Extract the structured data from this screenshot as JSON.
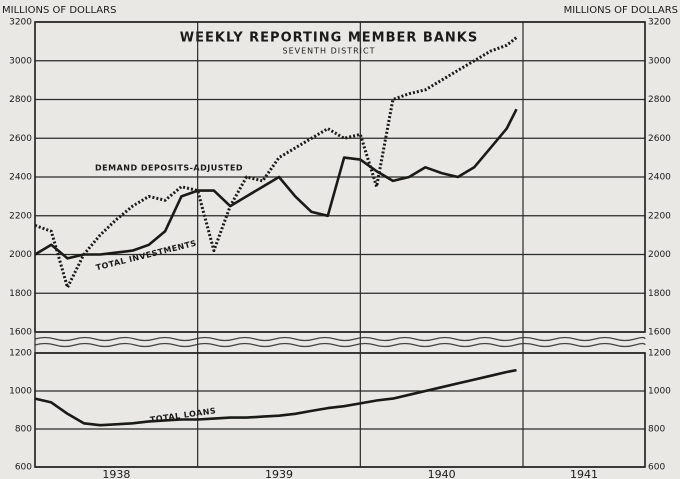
{
  "chart_data": [
    {
      "type": "line",
      "title": "WEEKLY REPORTING MEMBER BANKS",
      "subtitle": "SEVENTH DISTRICT",
      "ylabel": "MILLIONS OF DOLLARS",
      "ylim": [
        1600,
        3200
      ],
      "yticks": [
        1600,
        1800,
        2000,
        2200,
        2400,
        2600,
        2800,
        3000,
        3200
      ],
      "xlim": [
        1938,
        1941.75
      ],
      "grid": true,
      "x": [
        1938.0,
        1938.1,
        1938.2,
        1938.3,
        1938.4,
        1938.5,
        1938.6,
        1938.7,
        1938.8,
        1938.9,
        1939.0,
        1939.1,
        1939.2,
        1939.3,
        1939.4,
        1939.5,
        1939.6,
        1939.7,
        1939.8,
        1939.9,
        1940.0,
        1940.1,
        1940.2,
        1940.3,
        1940.4,
        1940.5,
        1940.6,
        1940.7,
        1940.8,
        1940.9,
        1940.96
      ],
      "series": [
        {
          "name": "DEMAND DEPOSITS-ADJUSTED",
          "color": "#1a1a1a",
          "line_style": "dotted",
          "values": [
            2150,
            2120,
            1830,
            2000,
            2100,
            2180,
            2250,
            2300,
            2280,
            2350,
            2330,
            2020,
            2250,
            2400,
            2380,
            2500,
            2550,
            2600,
            2650,
            2600,
            2620,
            2350,
            2800,
            2830,
            2850,
            2900,
            2950,
            3000,
            3050,
            3080,
            3120
          ]
        },
        {
          "name": "TOTAL INVESTMENTS",
          "color": "#1a1a1a",
          "line_style": "solid",
          "values": [
            2000,
            2050,
            1980,
            2000,
            2000,
            2010,
            2020,
            2050,
            2120,
            2300,
            2330,
            2330,
            2250,
            2300,
            2350,
            2400,
            2300,
            2220,
            2200,
            2500,
            2490,
            2430,
            2380,
            2400,
            2450,
            2420,
            2400,
            2450,
            2550,
            2650,
            2750
          ]
        }
      ]
    },
    {
      "type": "line",
      "ylim": [
        600,
        1200
      ],
      "yticks": [
        600,
        800,
        1000,
        1200
      ],
      "xlim": [
        1938,
        1941.75
      ],
      "xticks": [
        1938,
        1939,
        1940,
        1941
      ],
      "grid": true,
      "x": [
        1938.0,
        1938.1,
        1938.2,
        1938.3,
        1938.4,
        1938.5,
        1938.6,
        1938.7,
        1938.8,
        1938.9,
        1939.0,
        1939.1,
        1939.2,
        1939.3,
        1939.4,
        1939.5,
        1939.6,
        1939.7,
        1939.8,
        1939.9,
        1940.0,
        1940.1,
        1940.2,
        1940.3,
        1940.4,
        1940.5,
        1940.6,
        1940.7,
        1940.8,
        1940.9,
        1940.96
      ],
      "series": [
        {
          "name": "TOTAL LOANS",
          "color": "#1a1a1a",
          "line_style": "solid",
          "values": [
            960,
            940,
            880,
            830,
            820,
            825,
            830,
            840,
            845,
            850,
            850,
            855,
            860,
            860,
            865,
            870,
            880,
            895,
            910,
            920,
            935,
            950,
            960,
            980,
            1000,
            1020,
            1040,
            1060,
            1080,
            1100,
            1110
          ]
        }
      ]
    }
  ]
}
